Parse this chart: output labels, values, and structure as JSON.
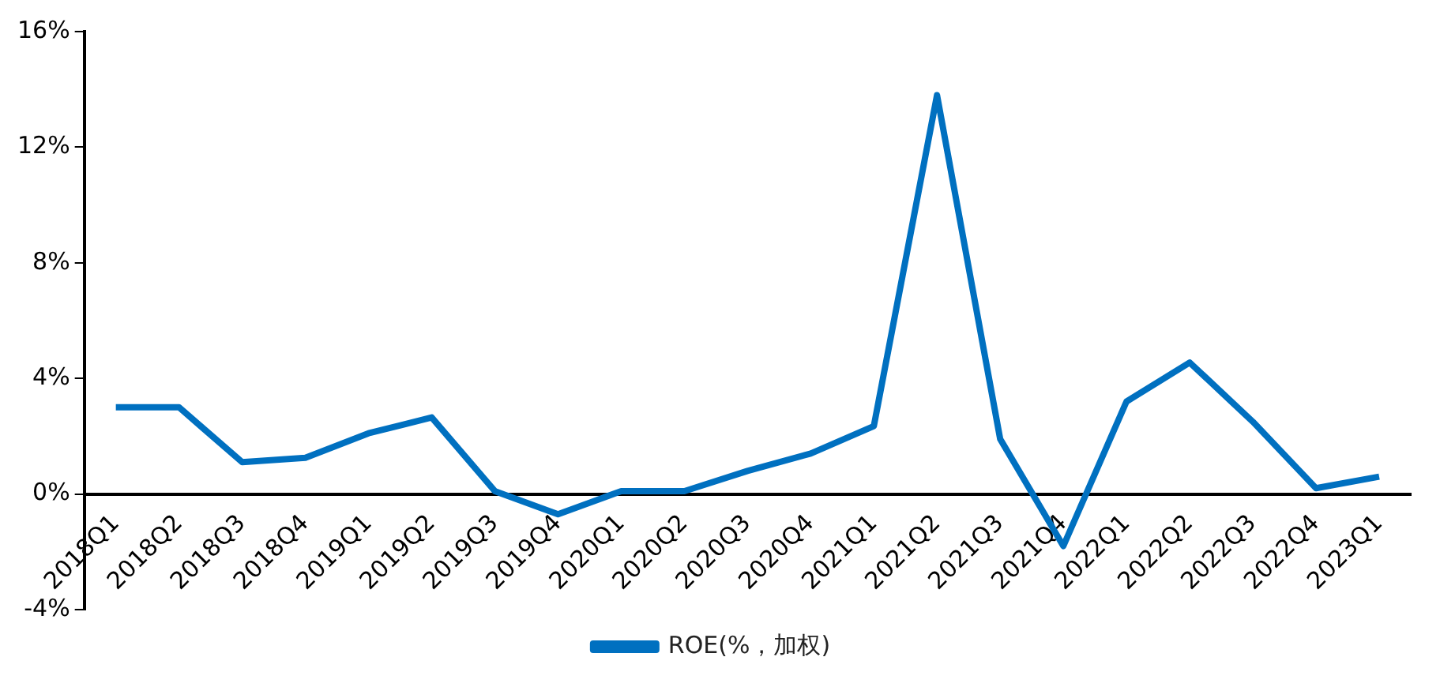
{
  "chart_data": {
    "type": "line",
    "categories": [
      "2018Q1",
      "2018Q2",
      "2018Q3",
      "2018Q4",
      "2019Q1",
      "2019Q2",
      "2019Q3",
      "2019Q4",
      "2020Q1",
      "2020Q2",
      "2020Q3",
      "2020Q4",
      "2021Q1",
      "2021Q2",
      "2021Q3",
      "2021Q4",
      "2022Q1",
      "2022Q2",
      "2022Q3",
      "2022Q4",
      "2023Q1"
    ],
    "series": [
      {
        "name": "ROE(%，加权)",
        "color": "#0070c0",
        "values": [
          3.0,
          3.0,
          1.1,
          1.25,
          2.1,
          2.65,
          0.1,
          -0.7,
          0.1,
          0.1,
          0.8,
          1.4,
          2.35,
          13.8,
          1.9,
          -1.8,
          3.2,
          4.55,
          2.5,
          0.2,
          0.6
        ]
      }
    ],
    "ylim": [
      -4,
      16
    ],
    "yticks": [
      {
        "value": -4,
        "label": "-4%"
      },
      {
        "value": 0,
        "label": "0%"
      },
      {
        "value": 4,
        "label": "4%"
      },
      {
        "value": 8,
        "label": "8%"
      },
      {
        "value": 12,
        "label": "12%"
      },
      {
        "value": 16,
        "label": "16%"
      }
    ],
    "grid": false,
    "legend": "bottom",
    "marker": "none",
    "line_style": "solid"
  }
}
